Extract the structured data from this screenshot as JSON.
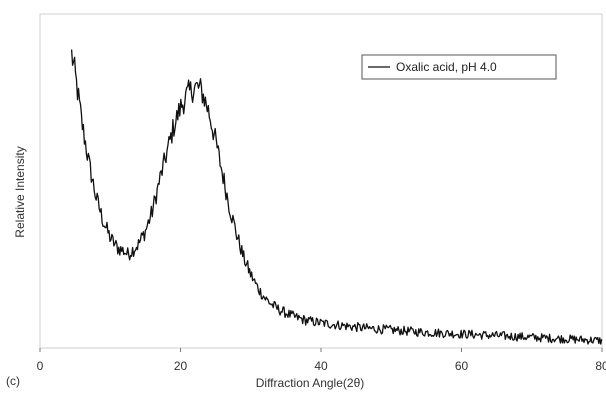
{
  "panel_label": "(c)",
  "chart_data": {
    "type": "line",
    "xlabel": "Diffraction Angle(2θ)",
    "ylabel": "Relative Intensity",
    "xlim": [
      0,
      80
    ],
    "ylim": [
      0,
      1
    ],
    "x_ticks": [
      0,
      20,
      40,
      60,
      80
    ],
    "x_tick_labels": [
      "0",
      "20",
      "40",
      "60",
      "80"
    ],
    "grid": false,
    "legend_position": "top-right",
    "series": [
      {
        "name": "Oxalic acid, pH 4.0",
        "color": "#111111",
        "x": [
          4.5,
          5,
          6,
          7,
          8,
          9,
          10,
          11,
          12,
          12.5,
          13,
          14,
          15,
          16,
          17,
          18,
          19,
          20,
          21,
          22,
          22.5,
          23,
          24,
          25,
          26,
          27,
          28,
          29,
          30,
          31,
          32,
          33,
          34,
          35,
          36,
          37,
          38,
          40,
          42,
          44,
          46,
          48,
          50,
          52,
          54,
          56,
          58,
          60,
          62,
          64,
          66,
          68,
          70,
          72,
          74,
          76,
          78,
          80
        ],
        "y": [
          0.88,
          0.82,
          0.67,
          0.55,
          0.45,
          0.38,
          0.33,
          0.3,
          0.29,
          0.28,
          0.29,
          0.31,
          0.35,
          0.41,
          0.5,
          0.58,
          0.66,
          0.72,
          0.76,
          0.78,
          0.78,
          0.77,
          0.71,
          0.62,
          0.52,
          0.42,
          0.34,
          0.27,
          0.22,
          0.18,
          0.15,
          0.13,
          0.115,
          0.105,
          0.095,
          0.088,
          0.082,
          0.075,
          0.07,
          0.065,
          0.06,
          0.057,
          0.054,
          0.051,
          0.048,
          0.046,
          0.044,
          0.042,
          0.04,
          0.038,
          0.036,
          0.034,
          0.032,
          0.03,
          0.028,
          0.026,
          0.024,
          0.022
        ]
      }
    ]
  }
}
